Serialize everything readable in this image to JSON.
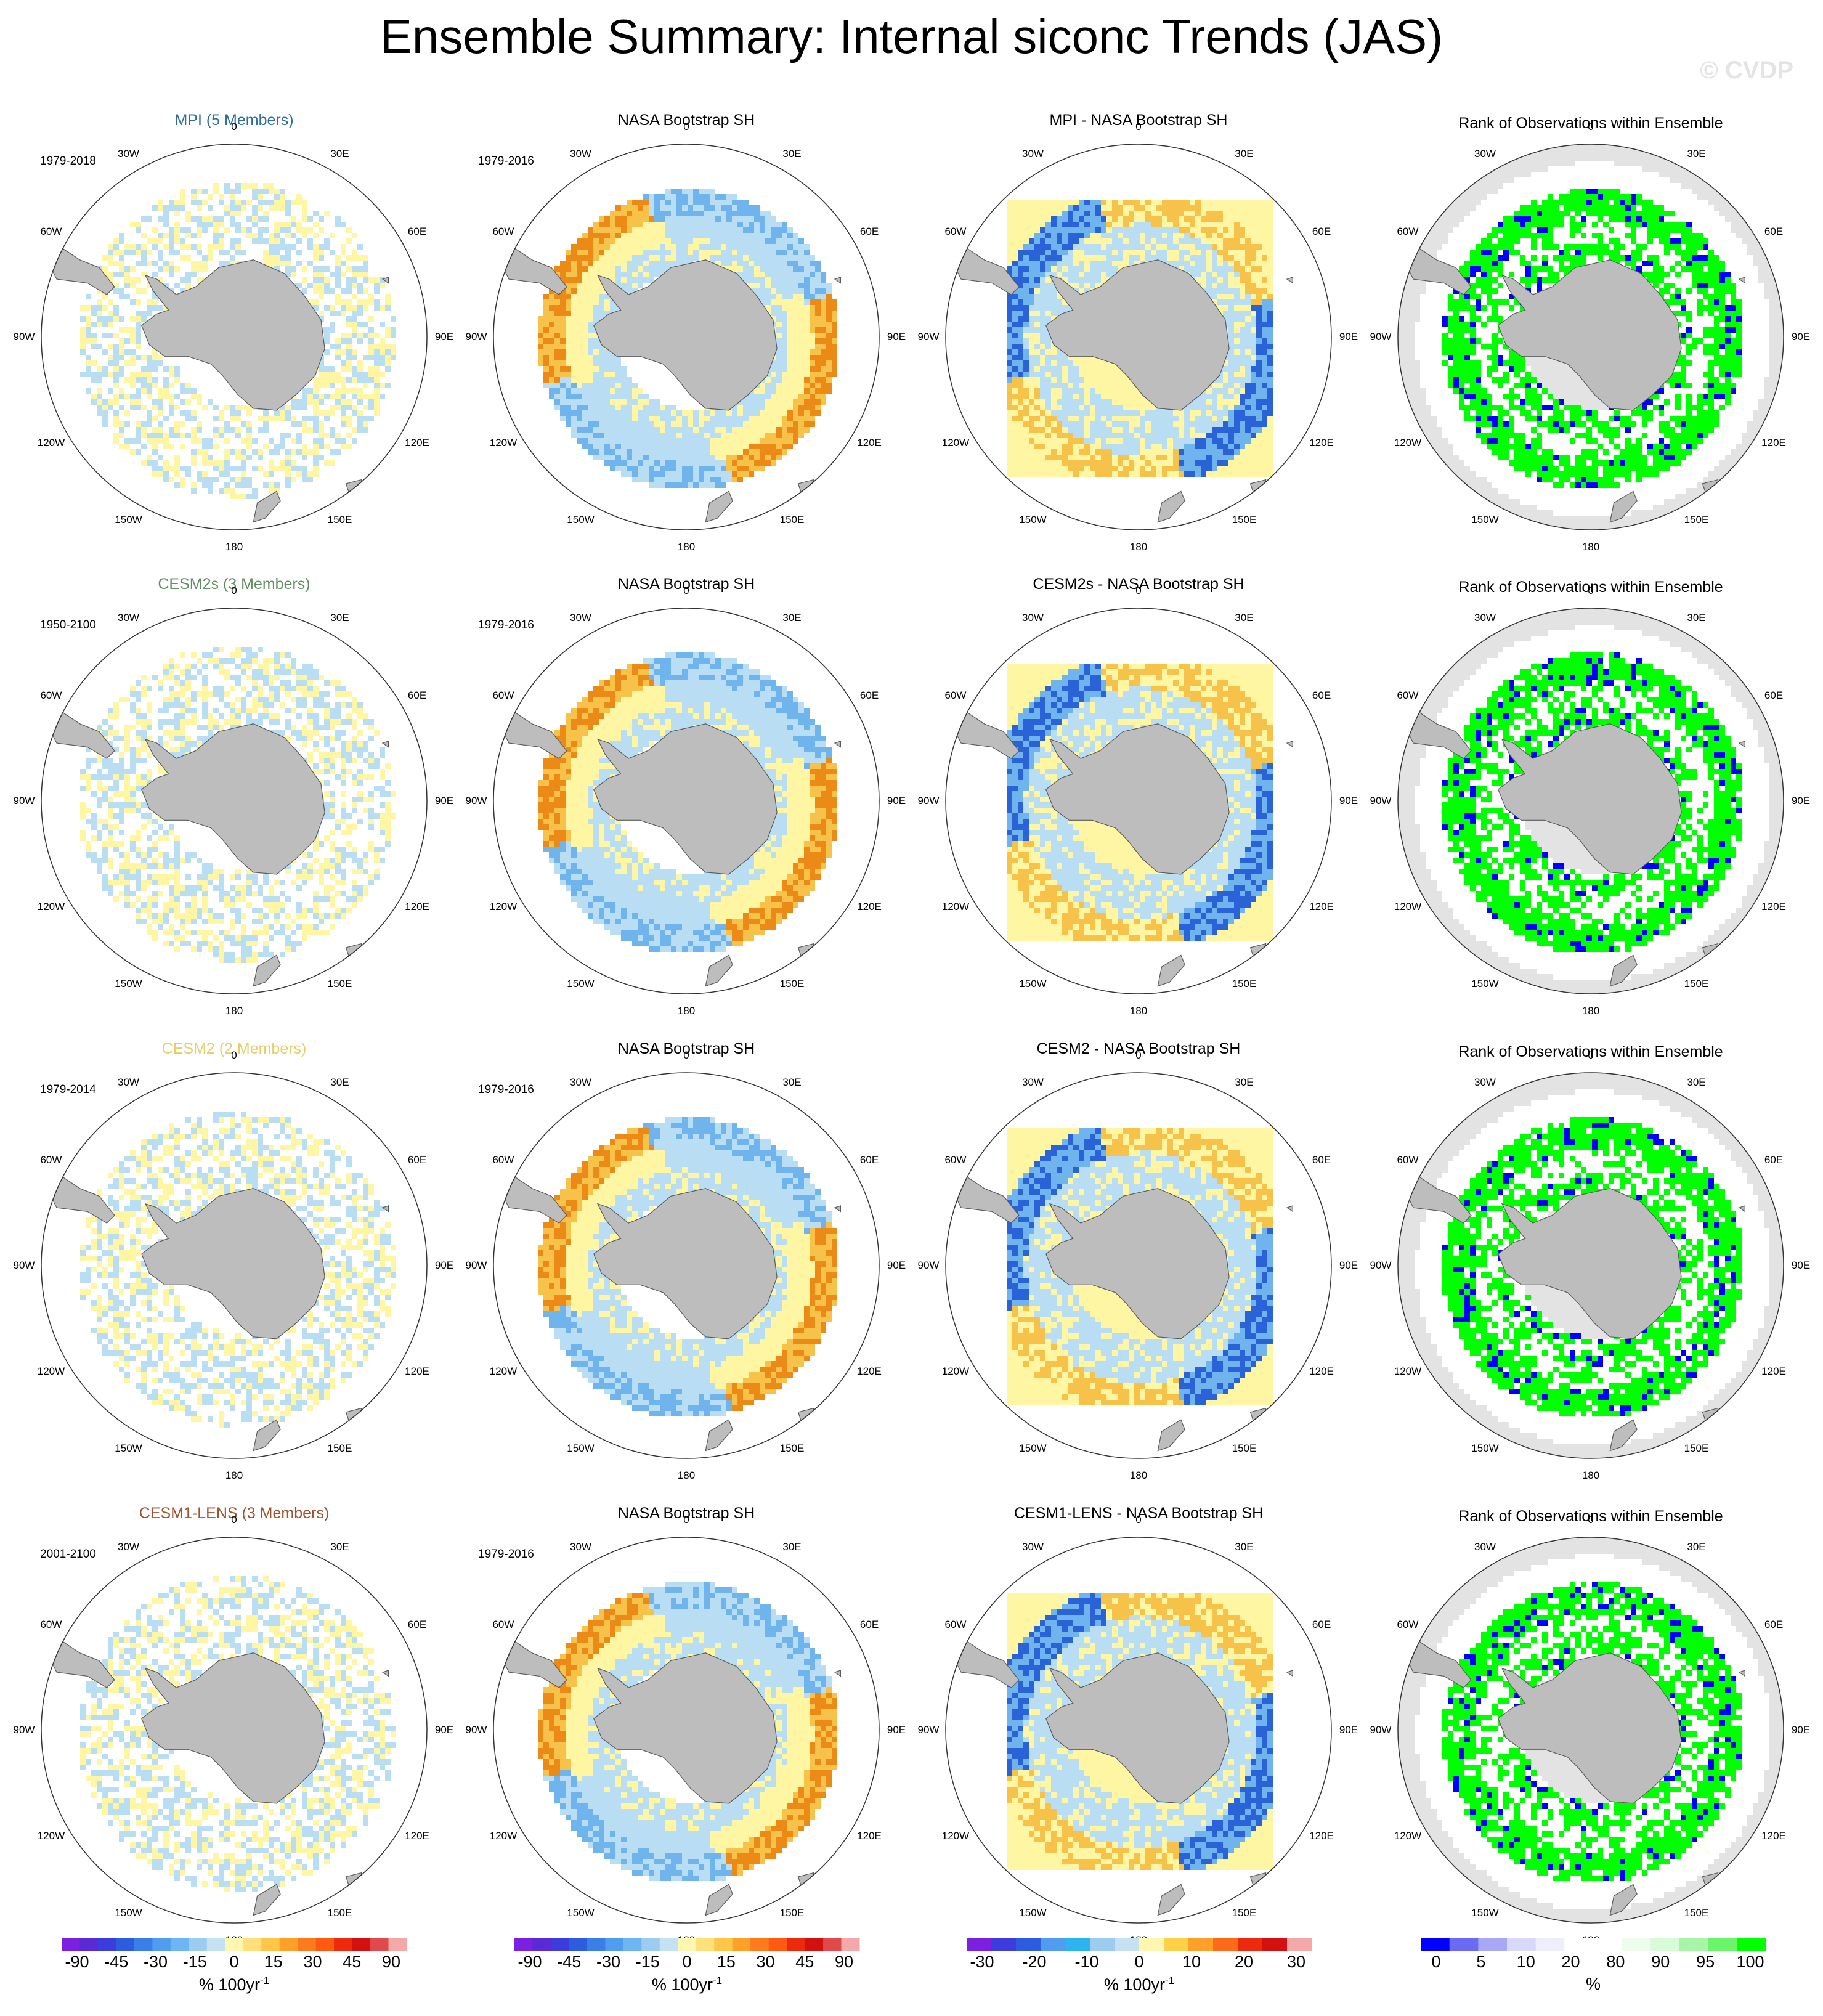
{
  "title": "Ensemble Summary: Internal siconc Trends (JAS)",
  "watermark": "© CVDP",
  "palette": {
    "land": "#bdbdbd",
    "coast": "#5a5a5a",
    "rank_background": "#e3e3e3",
    "ocean_white": "#ffffff",
    "trend_neg_light": "#b9ddf2",
    "trend_pos_light": "#fff6a3",
    "trend_neg_mid": "#6fb4ec",
    "trend_neg_strong": "#2a62d8",
    "trend_pos_mid": "#f7c24a",
    "trend_pos_strong": "#ec8a18",
    "rank_high": "#00ff00",
    "rank_low": "#0000ff"
  },
  "lon_labels": [
    "0",
    "30E",
    "60E",
    "90E",
    "120E",
    "150E",
    "180",
    "150W",
    "120W",
    "90W",
    "60W",
    "30W"
  ],
  "rows": [
    {
      "model_title": "MPI (5 Members)",
      "model_color": "#2c6e9b",
      "model_period": "1979-2018",
      "obs_title": "NASA Bootstrap SH",
      "obs_period": "1979-2016",
      "diff_title": "MPI - NASA Bootstrap SH",
      "rank_title": "Rank of Observations within Ensemble"
    },
    {
      "model_title": "CESM2s (3 Members)",
      "model_color": "#5f8f5f",
      "model_period": "1950-2100",
      "obs_title": "NASA Bootstrap SH",
      "obs_period": "1979-2016",
      "diff_title": "CESM2s - NASA Bootstrap SH",
      "rank_title": "Rank of Observations within Ensemble"
    },
    {
      "model_title": "CESM2 (2 Members)",
      "model_color": "#e6cf6a",
      "model_period": "1979-2014",
      "obs_title": "NASA Bootstrap SH",
      "obs_period": "1979-2016",
      "diff_title": "CESM2 - NASA Bootstrap SH",
      "rank_title": "Rank of Observations within Ensemble"
    },
    {
      "model_title": "CESM1-LENS (3 Members)",
      "model_color": "#a0522d",
      "model_period": "2001-2100",
      "obs_title": "NASA Bootstrap SH",
      "obs_period": "1979-2016",
      "diff_title": "CESM1-LENS - NASA Bootstrap SH",
      "rank_title": "Rank of Observations within Ensemble"
    }
  ],
  "colorbars": [
    {
      "colors": [
        "#7b1fe0",
        "#5a2ad6",
        "#3c3cdc",
        "#2c5de0",
        "#3a7ee8",
        "#4f9cf0",
        "#6db6f2",
        "#9ccdf0",
        "#c4e2f4",
        "#fff7b0",
        "#ffe07a",
        "#ffc64a",
        "#ffa02a",
        "#ff7a1c",
        "#ff5a12",
        "#ee2a0e",
        "#d41010",
        "#e04a4a",
        "#f4a8a8"
      ],
      "ticks": [
        "-90",
        "-45",
        "-30",
        "-15",
        "0",
        "15",
        "30",
        "45",
        "90"
      ],
      "units": "% 100yr",
      "units_sup": "-1"
    },
    {
      "colors": [
        "#7b1fe0",
        "#5a2ad6",
        "#3c3cdc",
        "#2c5de0",
        "#3a7ee8",
        "#4f9cf0",
        "#6db6f2",
        "#9ccdf0",
        "#c4e2f4",
        "#fff7b0",
        "#ffe07a",
        "#ffc64a",
        "#ffa02a",
        "#ff7a1c",
        "#ff5a12",
        "#ee2a0e",
        "#d41010",
        "#e04a4a",
        "#f4a8a8"
      ],
      "ticks": [
        "-90",
        "-45",
        "-30",
        "-15",
        "0",
        "15",
        "30",
        "45",
        "90"
      ],
      "units": "% 100yr",
      "units_sup": "-1"
    },
    {
      "colors": [
        "#7b1fe0",
        "#3c3cdc",
        "#2c5de0",
        "#4f9cf0",
        "#2db4f0",
        "#9ccdf0",
        "#c4e2f4",
        "#fff7b0",
        "#ffd04a",
        "#ffa02a",
        "#ff6a1a",
        "#ee2a0e",
        "#d41010",
        "#f4a8a8"
      ],
      "ticks": [
        "-30",
        "-20",
        "-10",
        "0",
        "10",
        "20",
        "30"
      ],
      "units": "% 100yr",
      "units_sup": "-1"
    },
    {
      "colors": [
        "#0000ff",
        "#6a6af5",
        "#a8a8f5",
        "#d8d8f8",
        "#eeeefc",
        "#ffffff",
        "#ffffff",
        "#eefcee",
        "#d8fcd8",
        "#a8f5a8",
        "#6af56a",
        "#00ff00"
      ],
      "ticks": [
        "0",
        "5",
        "10",
        "20",
        "80",
        "90",
        "95",
        "100"
      ],
      "units": "%",
      "units_sup": ""
    }
  ]
}
